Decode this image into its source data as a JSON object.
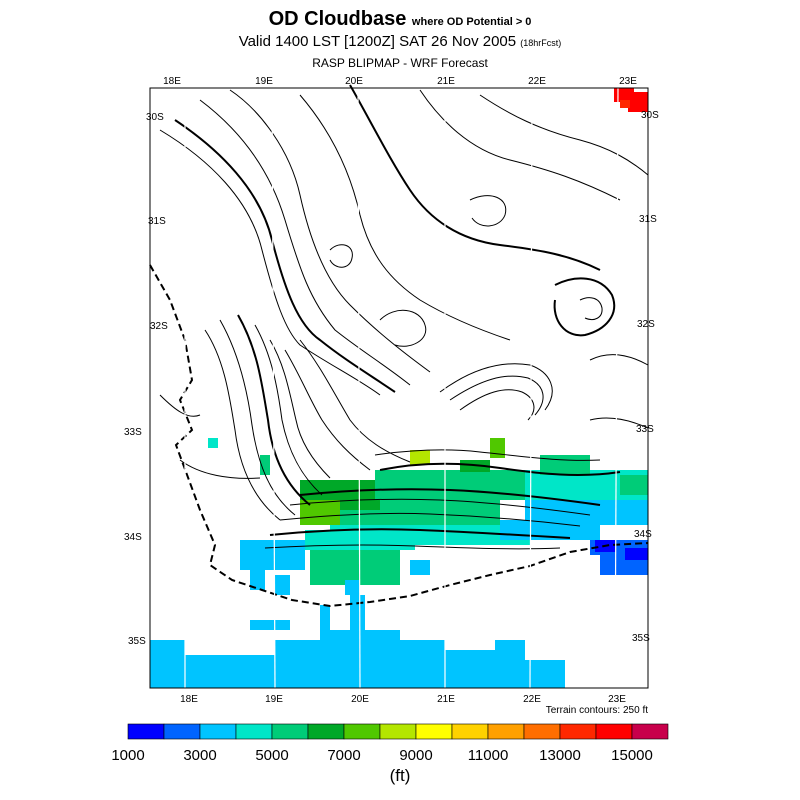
{
  "header": {
    "title": "OD Cloudbase",
    "title_note": "where OD Potential > 0",
    "valid_line": "Valid 1400 LST [1200Z] SAT 26 Nov 2005",
    "valid_note": "(18hrFcst)",
    "model_line": "RASP BLIPMAP - WRF Forecast"
  },
  "map": {
    "lon_labels": [
      "18E",
      "19E",
      "20E",
      "21E",
      "22E",
      "23E"
    ],
    "lat_labels": [
      "30S",
      "31S",
      "32S",
      "33S",
      "34S",
      "35S"
    ],
    "terrain_note": "Terrain contours: 250 ft"
  },
  "colorbar": {
    "colors": [
      "#0000ff",
      "#0064ff",
      "#00c4ff",
      "#00e6c8",
      "#00cc78",
      "#00a828",
      "#50c800",
      "#b4e600",
      "#ffff00",
      "#ffd200",
      "#ffa000",
      "#ff6e00",
      "#ff2800",
      "#ff0000",
      "#c8004b"
    ],
    "tick_labels": [
      "1000",
      "3000",
      "5000",
      "7000",
      "9000",
      "11000",
      "13000",
      "15000"
    ],
    "unit": "(ft)"
  }
}
